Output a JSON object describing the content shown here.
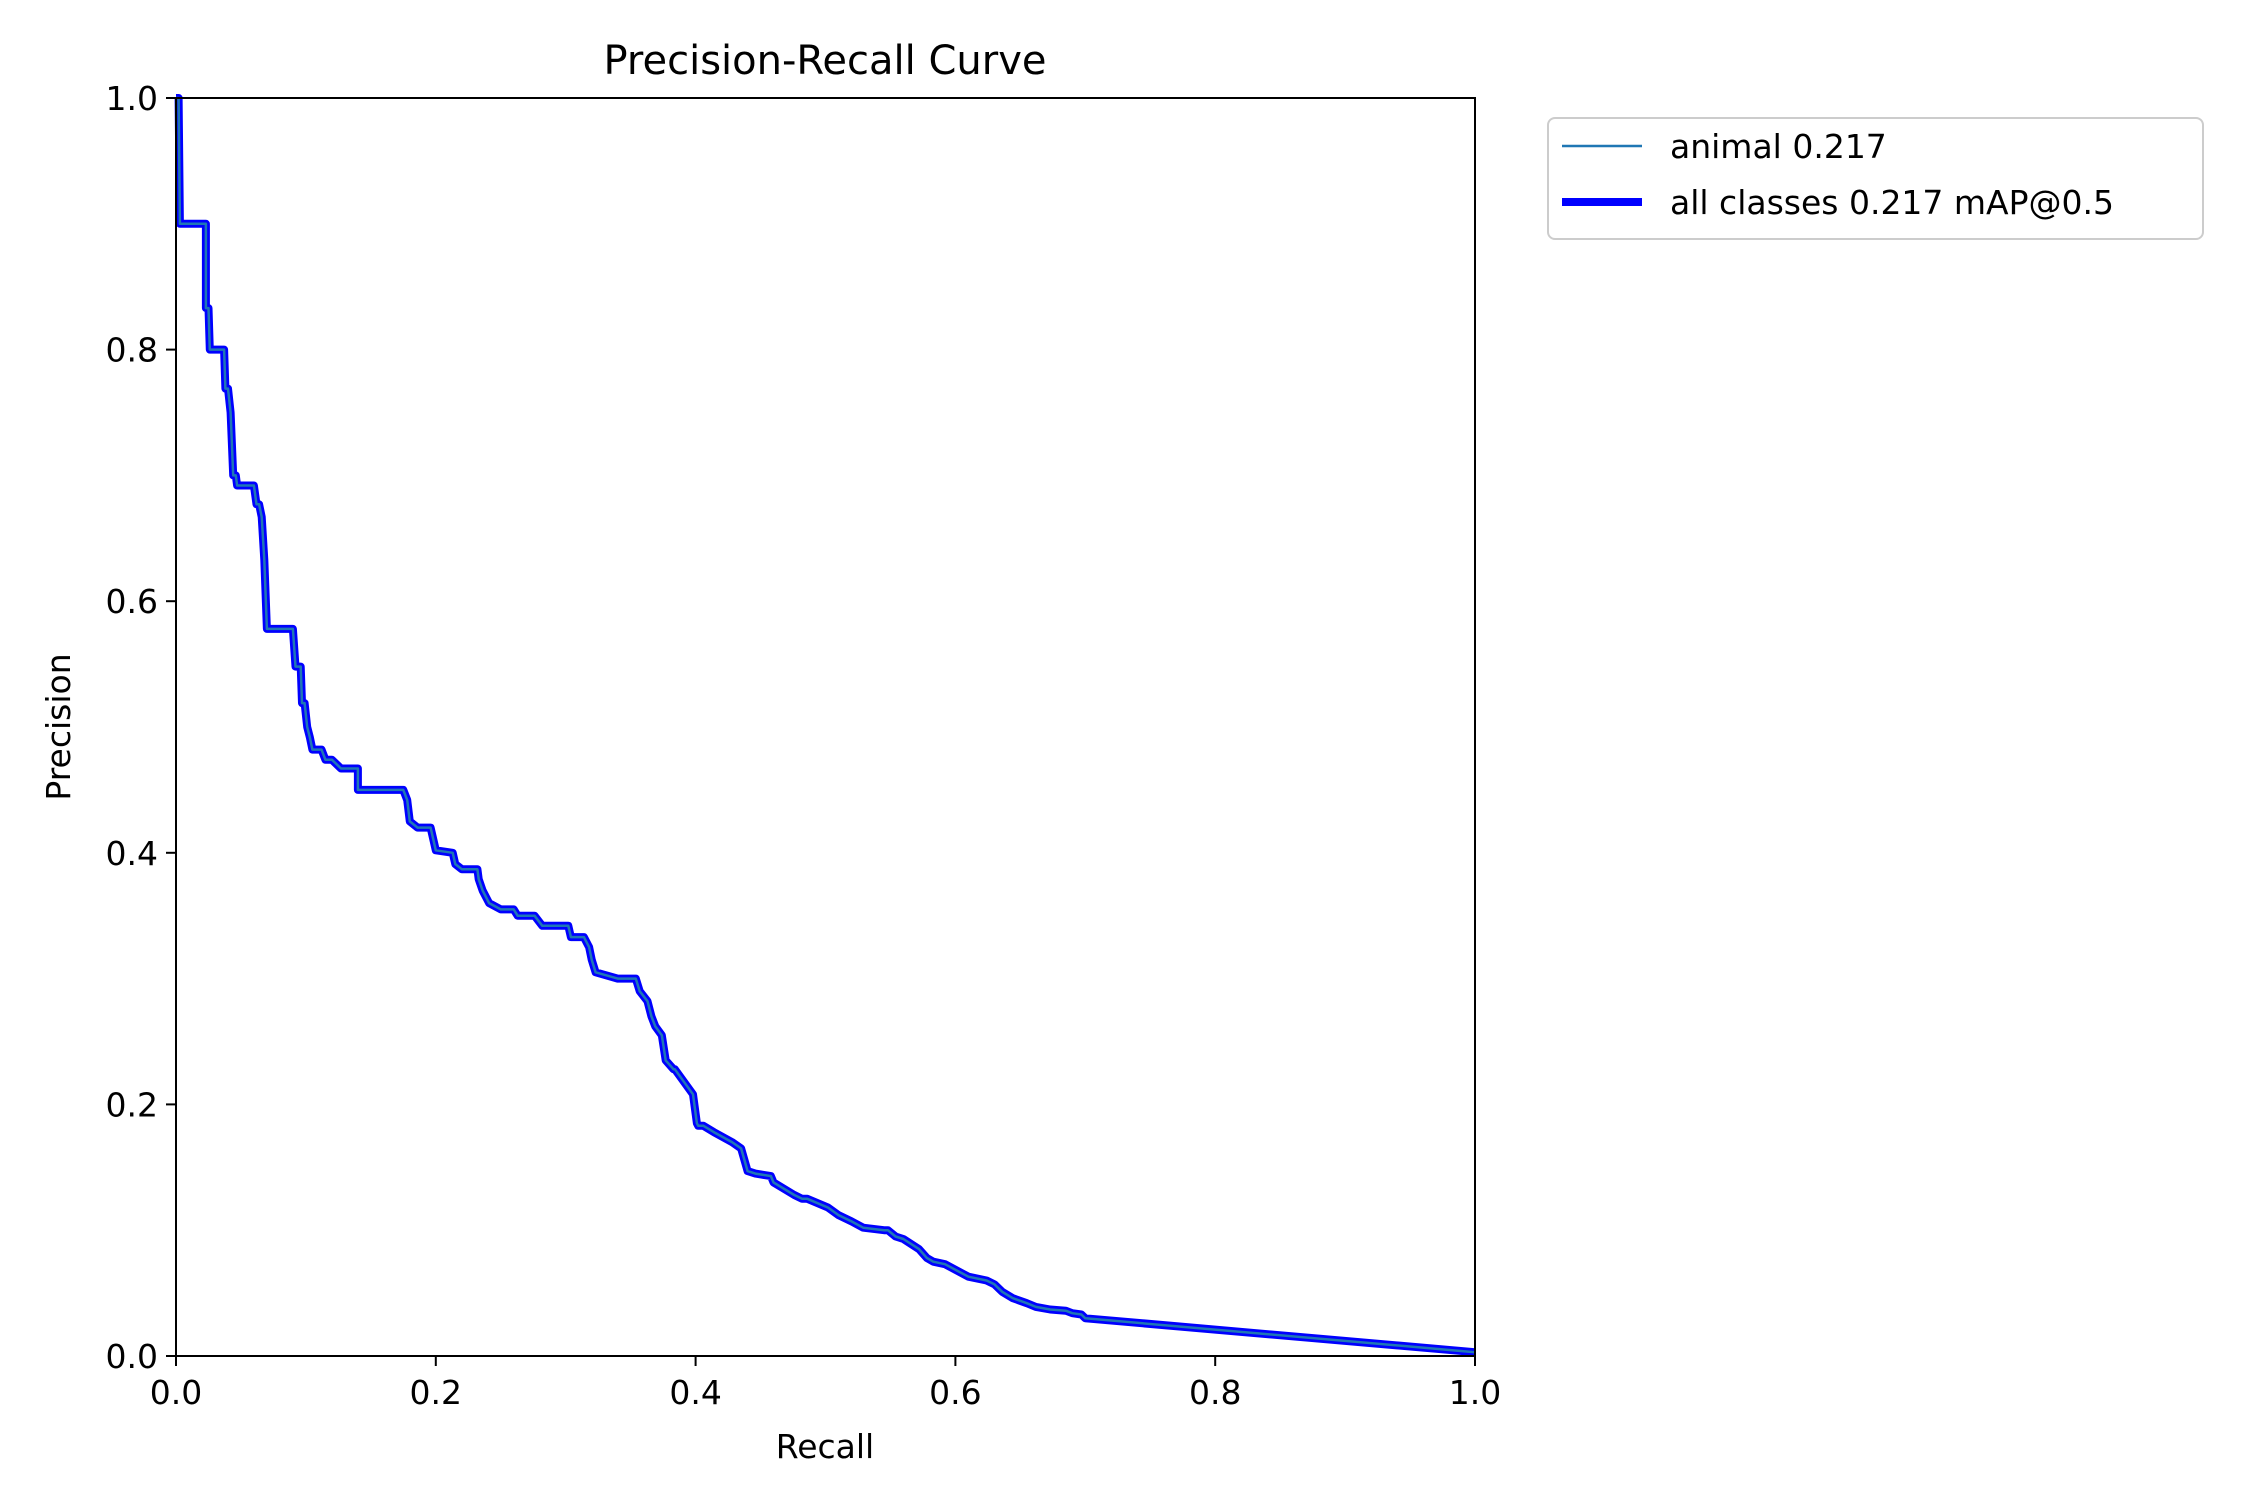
{
  "chart_data": {
    "type": "line",
    "title": "Precision-Recall Curve",
    "xlabel": "Recall",
    "ylabel": "Precision",
    "xlim": [
      0,
      1
    ],
    "ylim": [
      0,
      1
    ],
    "xticks": [
      0.0,
      0.2,
      0.4,
      0.6,
      0.8,
      1.0
    ],
    "yticks": [
      0.0,
      0.2,
      0.4,
      0.6,
      0.8,
      1.0
    ],
    "xtick_labels": [
      "0.0",
      "0.2",
      "0.4",
      "0.6",
      "0.8",
      "1.0"
    ],
    "ytick_labels": [
      "0.0",
      "0.2",
      "0.4",
      "0.6",
      "0.8",
      "1.0"
    ],
    "grid": false,
    "legend_position": "outside-upper-right",
    "series": [
      {
        "name": "animal 0.217",
        "color": "#1f77b4",
        "style": "thin",
        "x": [
          0.0,
          0.002,
          0.003,
          0.023,
          0.023,
          0.025,
          0.026,
          0.028,
          0.037,
          0.038,
          0.04,
          0.042,
          0.044,
          0.046,
          0.047,
          0.049,
          0.06,
          0.062,
          0.064,
          0.066,
          0.068,
          0.07,
          0.09,
          0.092,
          0.096,
          0.097,
          0.099,
          0.101,
          0.103,
          0.105,
          0.112,
          0.115,
          0.12,
          0.127,
          0.14,
          0.14,
          0.175,
          0.178,
          0.18,
          0.186,
          0.196,
          0.2,
          0.213,
          0.215,
          0.22,
          0.232,
          0.233,
          0.236,
          0.241,
          0.25,
          0.26,
          0.263,
          0.276,
          0.282,
          0.302,
          0.304,
          0.314,
          0.318,
          0.32,
          0.323,
          0.34,
          0.354,
          0.357,
          0.363,
          0.366,
          0.369,
          0.374,
          0.377,
          0.383,
          0.384,
          0.398,
          0.401,
          0.402,
          0.406,
          0.414,
          0.428,
          0.435,
          0.44,
          0.446,
          0.458,
          0.46,
          0.476,
          0.482,
          0.486,
          0.502,
          0.51,
          0.52,
          0.529,
          0.545,
          0.548,
          0.554,
          0.56,
          0.572,
          0.578,
          0.583,
          0.592,
          0.61,
          0.624,
          0.63,
          0.636,
          0.644,
          0.655,
          0.662,
          0.673,
          0.685,
          0.69,
          0.697,
          0.7,
          1.0
        ],
        "y": [
          1.0,
          1.0,
          0.9,
          0.9,
          0.833,
          0.833,
          0.8,
          0.8,
          0.8,
          0.769,
          0.769,
          0.75,
          0.7,
          0.7,
          0.692,
          0.692,
          0.692,
          0.677,
          0.677,
          0.667,
          0.633,
          0.578,
          0.578,
          0.548,
          0.548,
          0.519,
          0.519,
          0.5,
          0.492,
          0.482,
          0.482,
          0.474,
          0.474,
          0.467,
          0.467,
          0.45,
          0.45,
          0.442,
          0.425,
          0.42,
          0.42,
          0.402,
          0.4,
          0.391,
          0.387,
          0.387,
          0.379,
          0.37,
          0.36,
          0.355,
          0.355,
          0.35,
          0.35,
          0.342,
          0.342,
          0.333,
          0.333,
          0.325,
          0.315,
          0.305,
          0.3,
          0.3,
          0.29,
          0.282,
          0.27,
          0.262,
          0.255,
          0.235,
          0.228,
          0.228,
          0.208,
          0.185,
          0.183,
          0.183,
          0.178,
          0.17,
          0.165,
          0.147,
          0.145,
          0.143,
          0.138,
          0.128,
          0.125,
          0.125,
          0.118,
          0.112,
          0.107,
          0.102,
          0.1,
          0.1,
          0.095,
          0.093,
          0.085,
          0.078,
          0.075,
          0.073,
          0.063,
          0.06,
          0.057,
          0.051,
          0.046,
          0.042,
          0.039,
          0.037,
          0.036,
          0.034,
          0.033,
          0.03,
          0.003
        ]
      },
      {
        "name": "all classes 0.217 mAP@0.5",
        "color": "#0000ff",
        "style": "thick",
        "x": [
          0.0,
          0.002,
          0.003,
          0.023,
          0.023,
          0.025,
          0.026,
          0.028,
          0.037,
          0.038,
          0.04,
          0.042,
          0.044,
          0.046,
          0.047,
          0.049,
          0.06,
          0.062,
          0.064,
          0.066,
          0.068,
          0.07,
          0.09,
          0.092,
          0.096,
          0.097,
          0.099,
          0.101,
          0.103,
          0.105,
          0.112,
          0.115,
          0.12,
          0.127,
          0.14,
          0.14,
          0.175,
          0.178,
          0.18,
          0.186,
          0.196,
          0.2,
          0.213,
          0.215,
          0.22,
          0.232,
          0.233,
          0.236,
          0.241,
          0.25,
          0.26,
          0.263,
          0.276,
          0.282,
          0.302,
          0.304,
          0.314,
          0.318,
          0.32,
          0.323,
          0.34,
          0.354,
          0.357,
          0.363,
          0.366,
          0.369,
          0.374,
          0.377,
          0.383,
          0.384,
          0.398,
          0.401,
          0.402,
          0.406,
          0.414,
          0.428,
          0.435,
          0.44,
          0.446,
          0.458,
          0.46,
          0.476,
          0.482,
          0.486,
          0.502,
          0.51,
          0.52,
          0.529,
          0.545,
          0.548,
          0.554,
          0.56,
          0.572,
          0.578,
          0.583,
          0.592,
          0.61,
          0.624,
          0.63,
          0.636,
          0.644,
          0.655,
          0.662,
          0.673,
          0.685,
          0.69,
          0.697,
          0.7,
          1.0
        ],
        "y": [
          1.0,
          1.0,
          0.9,
          0.9,
          0.833,
          0.833,
          0.8,
          0.8,
          0.8,
          0.769,
          0.769,
          0.75,
          0.7,
          0.7,
          0.692,
          0.692,
          0.692,
          0.677,
          0.677,
          0.667,
          0.633,
          0.578,
          0.578,
          0.548,
          0.548,
          0.519,
          0.519,
          0.5,
          0.492,
          0.482,
          0.482,
          0.474,
          0.474,
          0.467,
          0.467,
          0.45,
          0.45,
          0.442,
          0.425,
          0.42,
          0.42,
          0.402,
          0.4,
          0.391,
          0.387,
          0.387,
          0.379,
          0.37,
          0.36,
          0.355,
          0.355,
          0.35,
          0.35,
          0.342,
          0.342,
          0.333,
          0.333,
          0.325,
          0.315,
          0.305,
          0.3,
          0.3,
          0.29,
          0.282,
          0.27,
          0.262,
          0.255,
          0.235,
          0.228,
          0.228,
          0.208,
          0.185,
          0.183,
          0.183,
          0.178,
          0.17,
          0.165,
          0.147,
          0.145,
          0.143,
          0.138,
          0.128,
          0.125,
          0.125,
          0.118,
          0.112,
          0.107,
          0.102,
          0.1,
          0.1,
          0.095,
          0.093,
          0.085,
          0.078,
          0.075,
          0.073,
          0.063,
          0.06,
          0.057,
          0.051,
          0.046,
          0.042,
          0.039,
          0.037,
          0.036,
          0.034,
          0.033,
          0.03,
          0.003
        ]
      }
    ]
  }
}
